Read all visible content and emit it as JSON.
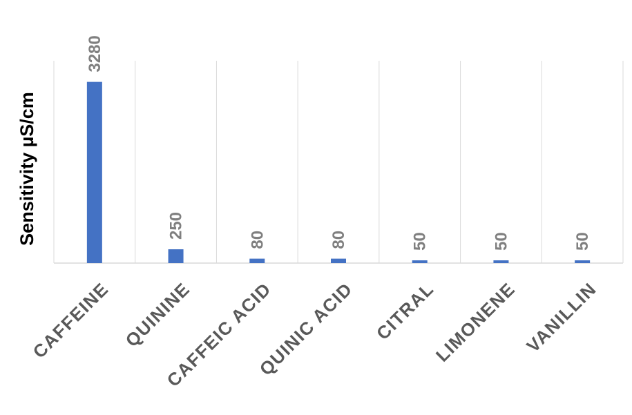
{
  "chart_data": {
    "type": "bar",
    "title": "",
    "xlabel": "",
    "ylabel": "Sensitivity µS/cm",
    "categories": [
      "CAFFEINE",
      "QUININE",
      "CAFFEIC ACID",
      "QUINIC ACID",
      "CITRAL",
      "LIMONENE",
      "VANILLIN"
    ],
    "values": [
      3280,
      250,
      80,
      80,
      50,
      50,
      50
    ],
    "data_labels": [
      "3280",
      "250",
      "80",
      "80",
      "50",
      "50",
      "50"
    ],
    "ylim": [
      0,
      3500
    ],
    "grid": "vertical category separators",
    "bar_color": "#4472C4"
  }
}
